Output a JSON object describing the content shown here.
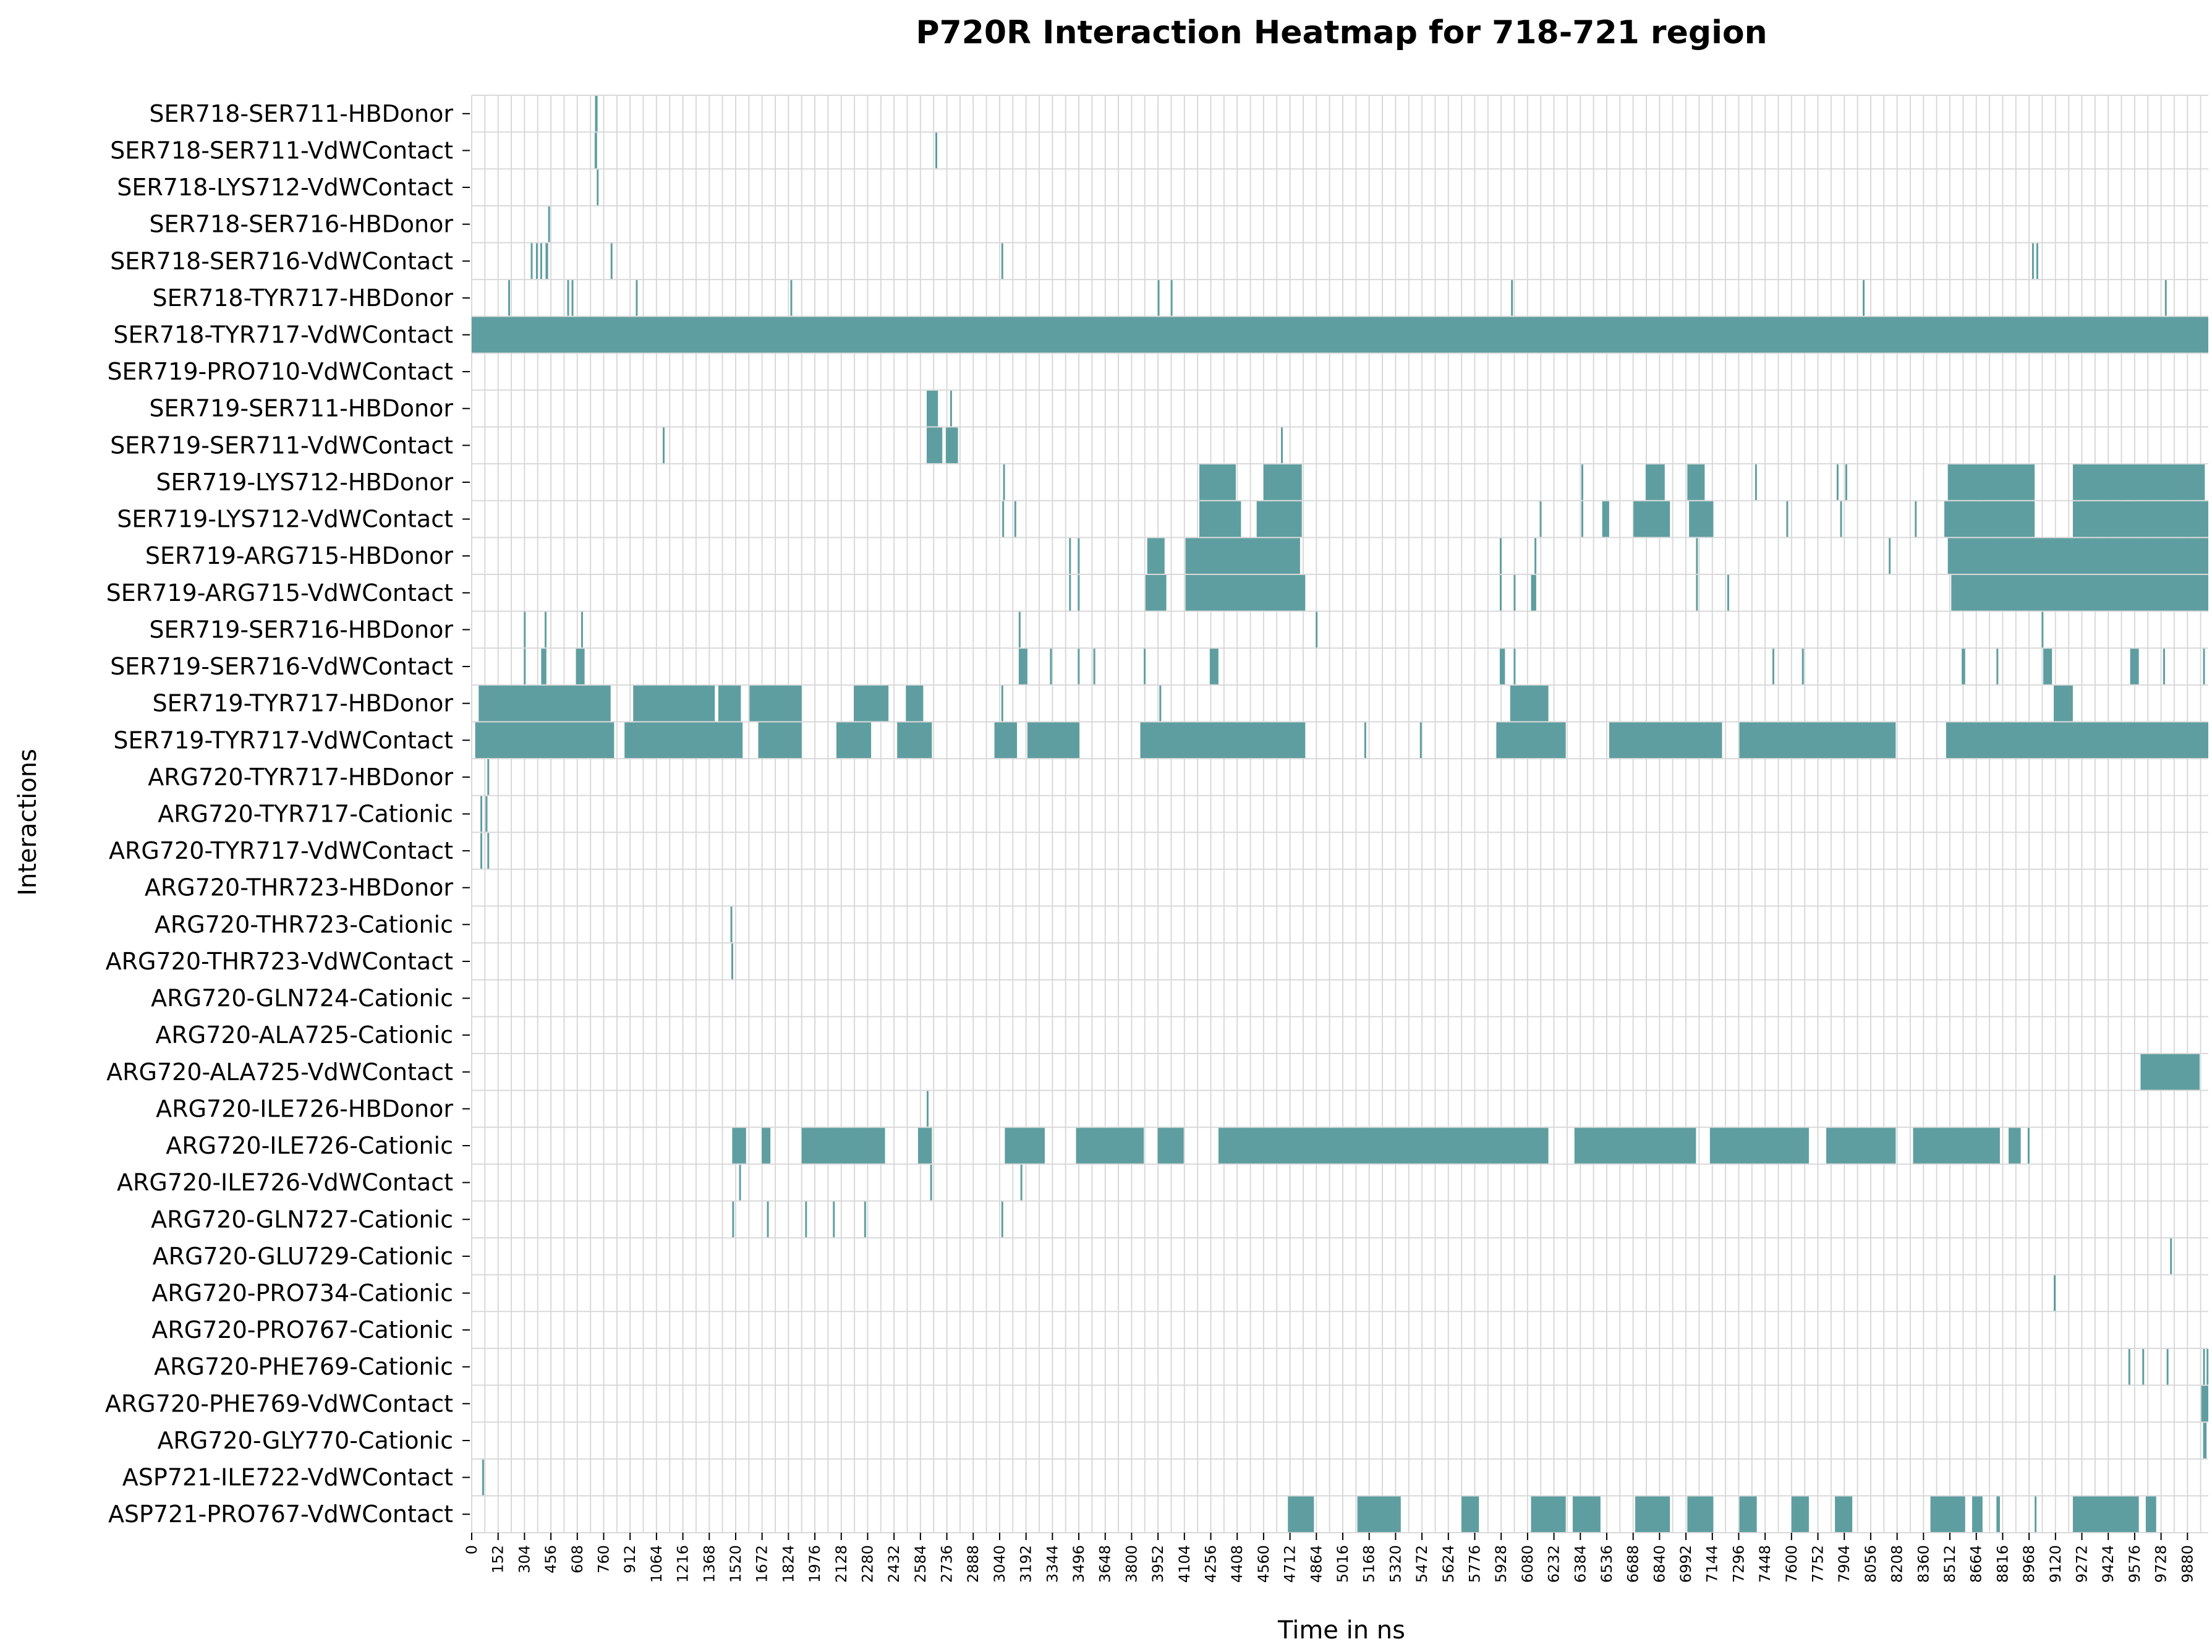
{
  "colors": {
    "filled": "#5f9ea0",
    "grid": "#d9d9d9",
    "axis_title": "#b22222",
    "background": "#ffffff"
  },
  "chart_data": {
    "type": "heatmap",
    "title": "P720R Interaction Heatmap for 718-721 region",
    "xlabel": "Time in ns",
    "ylabel": "Interactions",
    "xlim": [
      0,
      10000
    ],
    "x_tick_step": 152,
    "x_ticks": [
      "0",
      "152",
      "304",
      "456",
      "608",
      "760",
      "912",
      "1064",
      "1216",
      "1368",
      "1520",
      "1672",
      "1824",
      "1976",
      "2128",
      "2280",
      "2432",
      "2584",
      "2736",
      "2888",
      "3040",
      "3192",
      "3344",
      "3496",
      "3648",
      "3800",
      "3952",
      "4104",
      "4256",
      "4408",
      "4560",
      "4712",
      "4864",
      "5016",
      "5168",
      "5320",
      "5472",
      "5624",
      "5776",
      "5928",
      "6080",
      "6232",
      "6384",
      "6536",
      "6688",
      "6840",
      "6992",
      "7144",
      "7296",
      "7448",
      "7600",
      "7752",
      "7904",
      "8056",
      "8208",
      "8360",
      "8512",
      "8664",
      "8816",
      "8968",
      "9120",
      "9272",
      "9424",
      "9576",
      "9728",
      "9880"
    ],
    "value_scale": "binary: filled = interaction present at that frame",
    "rows": [
      {
        "label": "SER718-SER711-HBDonor",
        "events": [
          [
            710,
            725
          ]
        ]
      },
      {
        "label": "SER718-SER711-VdWContact",
        "events": [
          [
            708,
            722
          ],
          [
            2670,
            2678
          ]
        ]
      },
      {
        "label": "SER718-LYS712-VdWContact",
        "events": [
          [
            720,
            728
          ]
        ]
      },
      {
        "label": "SER718-SER716-HBDonor",
        "events": [
          [
            440,
            446
          ]
        ]
      },
      {
        "label": "SER718-SER716-VdWContact",
        "events": [
          [
            340,
            345
          ],
          [
            370,
            378
          ],
          [
            395,
            402
          ],
          [
            425,
            440
          ],
          [
            800,
            806
          ],
          [
            3050,
            3056
          ],
          [
            8985,
            8995
          ],
          [
            9010,
            9016
          ]
        ]
      },
      {
        "label": "SER718-TYR717-HBDonor",
        "events": [
          [
            210,
            216
          ],
          [
            550,
            556
          ],
          [
            575,
            581
          ],
          [
            945,
            951
          ],
          [
            1835,
            1841
          ],
          [
            3950,
            3956
          ],
          [
            4025,
            4031
          ],
          [
            5985,
            5995
          ],
          [
            8010,
            8016
          ],
          [
            9750,
            9756
          ]
        ]
      },
      {
        "label": "SER718-TYR717-VdWContact",
        "events": [
          [
            0,
            10000
          ]
        ]
      },
      {
        "label": "SER719-PRO710-VdWContact",
        "events": []
      },
      {
        "label": "SER719-SER711-HBDonor",
        "events": [
          [
            2620,
            2685
          ],
          [
            2755,
            2760
          ]
        ]
      },
      {
        "label": "SER719-SER711-VdWContact",
        "events": [
          [
            1100,
            1106
          ],
          [
            2620,
            2710
          ],
          [
            2730,
            2800
          ],
          [
            4660,
            4666
          ]
        ]
      },
      {
        "label": "SER719-LYS712-HBDonor",
        "events": [
          [
            3060,
            3066
          ],
          [
            4190,
            4400
          ],
          [
            4560,
            4780
          ],
          [
            6390,
            6396
          ],
          [
            6760,
            6870
          ],
          [
            7000,
            7100
          ],
          [
            7390,
            7396
          ],
          [
            7860,
            7870
          ],
          [
            7910,
            7916
          ],
          [
            8500,
            9000
          ],
          [
            9220,
            9980
          ]
        ]
      },
      {
        "label": "SER719-LYS712-VdWContact",
        "events": [
          [
            3055,
            3062
          ],
          [
            3125,
            3131
          ],
          [
            4190,
            4430
          ],
          [
            4520,
            4780
          ],
          [
            6150,
            6156
          ],
          [
            6390,
            6400
          ],
          [
            6510,
            6550
          ],
          [
            6690,
            6900
          ],
          [
            7010,
            7150
          ],
          [
            7570,
            7576
          ],
          [
            7880,
            7890
          ],
          [
            8310,
            8316
          ],
          [
            8480,
            9000
          ],
          [
            9220,
            10000
          ]
        ]
      },
      {
        "label": "SER719-ARG715-HBDonor",
        "events": [
          [
            3440,
            3446
          ],
          [
            3490,
            3496
          ],
          [
            3890,
            3990
          ],
          [
            4110,
            4770
          ],
          [
            5920,
            5926
          ],
          [
            6120,
            6126
          ],
          [
            7050,
            7056
          ],
          [
            8160,
            8166
          ],
          [
            8500,
            10000
          ]
        ]
      },
      {
        "label": "SER719-ARG715-VdWContact",
        "events": [
          [
            3440,
            3446
          ],
          [
            3490,
            3496
          ],
          [
            3880,
            4000
          ],
          [
            4110,
            4800
          ],
          [
            5920,
            5930
          ],
          [
            6000,
            6006
          ],
          [
            6100,
            6130
          ],
          [
            7050,
            7056
          ],
          [
            7230,
            7236
          ],
          [
            8520,
            10000
          ]
        ]
      },
      {
        "label": "SER719-SER716-HBDonor",
        "events": [
          [
            300,
            306
          ],
          [
            420,
            430
          ],
          [
            630,
            636
          ],
          [
            3150,
            3156
          ],
          [
            4860,
            4866
          ],
          [
            9040,
            9046
          ]
        ]
      },
      {
        "label": "SER719-SER716-VdWContact",
        "events": [
          [
            300,
            306
          ],
          [
            400,
            430
          ],
          [
            600,
            650
          ],
          [
            3150,
            3200
          ],
          [
            3330,
            3336
          ],
          [
            3490,
            3496
          ],
          [
            3580,
            3586
          ],
          [
            3870,
            3876
          ],
          [
            4250,
            4300
          ],
          [
            5920,
            5950
          ],
          [
            6000,
            6006
          ],
          [
            7490,
            7496
          ],
          [
            7660,
            7666
          ],
          [
            8580,
            8600
          ],
          [
            8780,
            8786
          ],
          [
            9050,
            9100
          ],
          [
            9550,
            9600
          ],
          [
            9740,
            9746
          ],
          [
            9970,
            9976
          ]
        ]
      },
      {
        "label": "SER719-TYR717-HBDonor",
        "events": [
          [
            40,
            800
          ],
          [
            930,
            1400
          ],
          [
            1420,
            1550
          ],
          [
            1600,
            1900
          ],
          [
            2200,
            2400
          ],
          [
            2500,
            2600
          ],
          [
            3050,
            3060
          ],
          [
            3960,
            3966
          ],
          [
            5980,
            6200
          ],
          [
            9110,
            9220
          ]
        ]
      },
      {
        "label": "SER719-TYR717-VdWContact",
        "events": [
          [
            20,
            820
          ],
          [
            880,
            1560
          ],
          [
            1650,
            1900
          ],
          [
            2100,
            2300
          ],
          [
            2450,
            2650
          ],
          [
            3010,
            3140
          ],
          [
            3200,
            3500
          ],
          [
            3850,
            4800
          ],
          [
            5140,
            5146
          ],
          [
            5460,
            5466
          ],
          [
            5900,
            6300
          ],
          [
            6550,
            7200
          ],
          [
            7300,
            8200
          ],
          [
            8490,
            10000
          ]
        ]
      },
      {
        "label": "ARG720-TYR717-HBDonor",
        "events": [
          [
            90,
            96
          ]
        ]
      },
      {
        "label": "ARG720-TYR717-Cationic",
        "events": [
          [
            50,
            56
          ],
          [
            80,
            86
          ]
        ]
      },
      {
        "label": "ARG720-TYR717-VdWContact",
        "events": [
          [
            50,
            56
          ],
          [
            90,
            96
          ]
        ]
      },
      {
        "label": "ARG720-THR723-HBDonor",
        "events": []
      },
      {
        "label": "ARG720-THR723-Cationic",
        "events": [
          [
            1490,
            1500
          ]
        ]
      },
      {
        "label": "ARG720-THR723-VdWContact",
        "events": [
          [
            1495,
            1502
          ]
        ]
      },
      {
        "label": "ARG720-GLN724-Cationic",
        "events": []
      },
      {
        "label": "ARG720-ALA725-Cationic",
        "events": []
      },
      {
        "label": "ARG720-ALA725-VdWContact",
        "events": [
          [
            9610,
            9950
          ]
        ]
      },
      {
        "label": "ARG720-ILE726-HBDonor",
        "events": [
          [
            2620,
            2626
          ]
        ]
      },
      {
        "label": "ARG720-ILE726-Cationic",
        "events": [
          [
            1500,
            1580
          ],
          [
            1670,
            1720
          ],
          [
            1900,
            2380
          ],
          [
            2570,
            2650
          ],
          [
            3070,
            3300
          ],
          [
            3480,
            3870
          ],
          [
            3950,
            4100
          ],
          [
            4300,
            6200
          ],
          [
            6350,
            7050
          ],
          [
            7130,
            7700
          ],
          [
            7800,
            8200
          ],
          [
            8300,
            8800
          ],
          [
            8850,
            8920
          ],
          [
            8960,
            8970
          ]
        ]
      },
      {
        "label": "ARG720-ILE726-VdWContact",
        "events": [
          [
            1540,
            1546
          ],
          [
            2640,
            2646
          ],
          [
            3160,
            3166
          ]
        ]
      },
      {
        "label": "ARG720-GLN727-Cationic",
        "events": [
          [
            1500,
            1506
          ],
          [
            1700,
            1706
          ],
          [
            1920,
            1926
          ],
          [
            2080,
            2086
          ],
          [
            2260,
            2266
          ],
          [
            3050,
            3056
          ]
        ]
      },
      {
        "label": "ARG720-GLU729-Cationic",
        "events": [
          [
            9780,
            9786
          ]
        ]
      },
      {
        "label": "ARG720-PRO734-Cationic",
        "events": [
          [
            9110,
            9118
          ]
        ]
      },
      {
        "label": "ARG720-PRO767-Cationic",
        "events": []
      },
      {
        "label": "ARG720-PHE769-Cationic",
        "events": [
          [
            9540,
            9546
          ],
          [
            9620,
            9626
          ],
          [
            9760,
            9766
          ],
          [
            9970,
            9976
          ],
          [
            9990,
            10000
          ]
        ]
      },
      {
        "label": "ARG720-PHE769-VdWContact",
        "events": [
          [
            9960,
            10000
          ]
        ]
      },
      {
        "label": "ARG720-GLY770-Cationic",
        "events": [
          [
            9970,
            9990
          ]
        ]
      },
      {
        "label": "ASP721-ILE722-VdWContact",
        "events": [
          [
            60,
            66
          ]
        ]
      },
      {
        "label": "ASP721-PRO767-VdWContact",
        "events": [
          [
            4700,
            4850
          ],
          [
            5100,
            5350
          ],
          [
            5700,
            5800
          ],
          [
            6100,
            6300
          ],
          [
            6340,
            6500
          ],
          [
            6700,
            6900
          ],
          [
            7000,
            7150
          ],
          [
            7300,
            7400
          ],
          [
            7600,
            7700
          ],
          [
            7850,
            7950
          ],
          [
            8400,
            8600
          ],
          [
            8640,
            8700
          ],
          [
            8780,
            8800
          ],
          [
            9000,
            9006
          ],
          [
            9220,
            9600
          ],
          [
            9640,
            9700
          ]
        ]
      }
    ]
  }
}
